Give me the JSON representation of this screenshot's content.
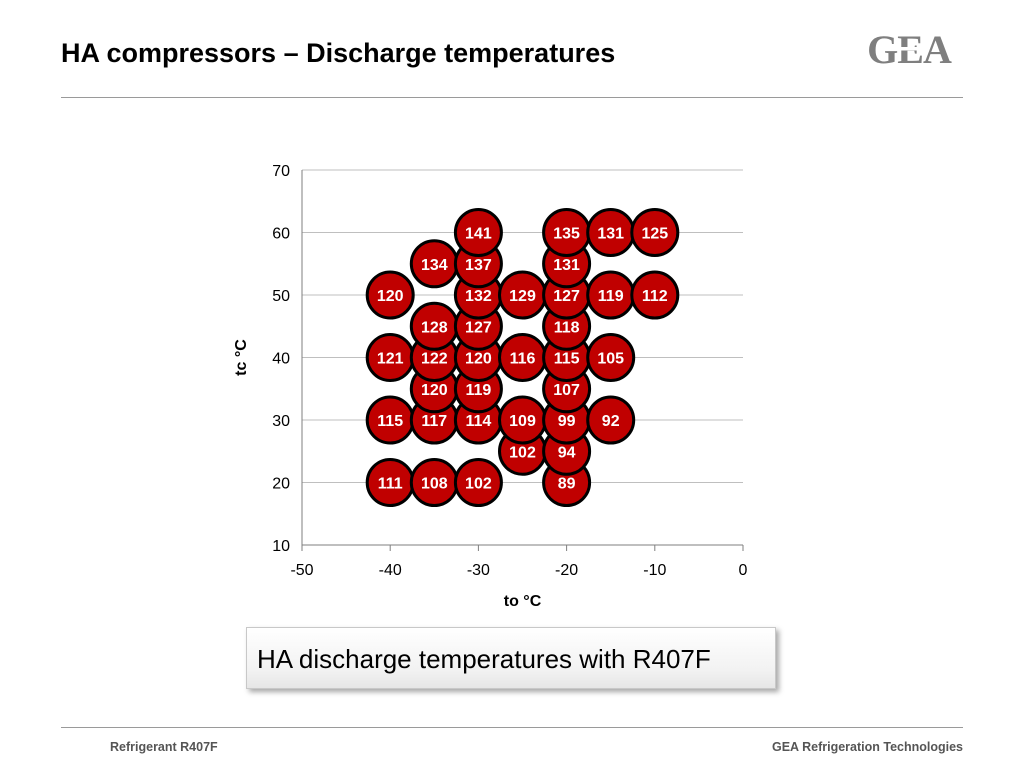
{
  "slide": {
    "title": "HA compressors – Discharge temperatures",
    "logo_text": "GEA",
    "caption": "HA discharge temperatures with R407F",
    "footer_left": "Refrigerant R407F",
    "footer_right": "GEA Refrigeration Technologies"
  },
  "colors": {
    "bubble_fill": "#c00000",
    "bubble_stroke": "#000000",
    "bubble_text": "#ffffff",
    "grid": "#bfbfbf",
    "logo": "#7f7f7f"
  },
  "chart_data": {
    "type": "scatter",
    "xlabel": "to °C",
    "ylabel": "tc °C",
    "xlim": [
      -50,
      0
    ],
    "ylim": [
      10,
      70
    ],
    "xticks": [
      -50,
      -40,
      -30,
      -20,
      -10,
      0
    ],
    "yticks": [
      10,
      20,
      30,
      40,
      50,
      60,
      70
    ],
    "grid": "horizontal",
    "points": [
      {
        "x": -40,
        "y": 20,
        "value": 111
      },
      {
        "x": -35,
        "y": 20,
        "value": 108
      },
      {
        "x": -30,
        "y": 20,
        "value": 102
      },
      {
        "x": -20,
        "y": 20,
        "value": 89
      },
      {
        "x": -25,
        "y": 25,
        "value": 102
      },
      {
        "x": -20,
        "y": 25,
        "value": 94
      },
      {
        "x": -40,
        "y": 30,
        "value": 115
      },
      {
        "x": -35,
        "y": 30,
        "value": 117
      },
      {
        "x": -30,
        "y": 30,
        "value": 114
      },
      {
        "x": -25,
        "y": 30,
        "value": 109
      },
      {
        "x": -20,
        "y": 30,
        "value": 99
      },
      {
        "x": -15,
        "y": 30,
        "value": 92
      },
      {
        "x": -35,
        "y": 35,
        "value": 120
      },
      {
        "x": -30,
        "y": 35,
        "value": 119
      },
      {
        "x": -20,
        "y": 35,
        "value": 107
      },
      {
        "x": -40,
        "y": 40,
        "value": 121
      },
      {
        "x": -35,
        "y": 40,
        "value": 122
      },
      {
        "x": -30,
        "y": 40,
        "value": 120
      },
      {
        "x": -25,
        "y": 40,
        "value": 116
      },
      {
        "x": -20,
        "y": 40,
        "value": 115
      },
      {
        "x": -15,
        "y": 40,
        "value": 105
      },
      {
        "x": -35,
        "y": 45,
        "value": 128
      },
      {
        "x": -30,
        "y": 45,
        "value": 127
      },
      {
        "x": -20,
        "y": 45,
        "value": 118
      },
      {
        "x": -40,
        "y": 50,
        "value": 120
      },
      {
        "x": -30,
        "y": 50,
        "value": 132
      },
      {
        "x": -25,
        "y": 50,
        "value": 129
      },
      {
        "x": -20,
        "y": 50,
        "value": 127
      },
      {
        "x": -15,
        "y": 50,
        "value": 119
      },
      {
        "x": -10,
        "y": 50,
        "value": 112
      },
      {
        "x": -35,
        "y": 55,
        "value": 134
      },
      {
        "x": -30,
        "y": 55,
        "value": 137
      },
      {
        "x": -20,
        "y": 55,
        "value": 131
      },
      {
        "x": -30,
        "y": 60,
        "value": 141
      },
      {
        "x": -20,
        "y": 60,
        "value": 135
      },
      {
        "x": -15,
        "y": 60,
        "value": 131
      },
      {
        "x": -10,
        "y": 60,
        "value": 125
      }
    ]
  }
}
